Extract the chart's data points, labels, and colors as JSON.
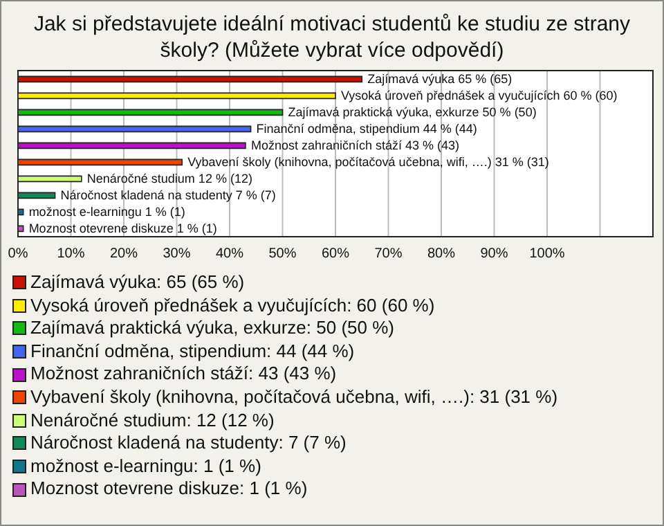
{
  "chart_data": {
    "type": "bar",
    "orientation": "horizontal",
    "title": "Jak si představujete ideální motivaci studentů ke studiu ze strany školy? (Můžete vybrat více odpovědí)",
    "categories": [
      null,
      null,
      null,
      null,
      null,
      null,
      null,
      null,
      null,
      null
    ],
    "values": [
      65,
      60,
      50,
      44,
      43,
      31,
      12,
      7,
      1,
      1
    ],
    "colors": [
      "#cc1100",
      "#ffee00",
      "#11bb11",
      "#4466ee",
      "#bb11cc",
      "#ee4400",
      "#ccff77",
      "#118855",
      "#117788",
      "#bb55bb"
    ],
    "value_labels": [
      "Zajímavá výuka 65 % (65)",
      "Vysoká úroveň přednášek a vyučujících 60 % (60)",
      "Zajímavá praktická výuka, exkurze 50 % (50)",
      "Finanční odměna, stipendium 44 % (44)",
      "Možnost zahraničních stáží 43 % (43)",
      "Vybavení školy (knihovna, počítačová učebna, wifi, ….) 31 % (31)",
      "Nenáročné studium 12 % (12)",
      "Náročnost kladená na studenty 7 % (7)",
      "možnost e-learningu 1 % (1)",
      "Moznost otevrene diskuze 1 % (1)"
    ],
    "annotations": [
      "Zajímavá výuka: 65 (65 %)",
      "Vysoká úroveň přednášek a vyučujících: 60 (60 %)",
      "Zajímavá praktická výuka, exkurze: 50 (50 %)",
      "Finanční odměna, stipendium: 44 (44 %)",
      "Možnost zahraničních stáží: 43 (43 %)",
      "Vybavení školy (knihovna, počítačová učebna, wifi, ….): 31 (31 %)",
      "Nenáročné studium: 12 (12 %)",
      "Náročnost kladená na studenty: 7 (7 %)",
      "možnost e-learningu: 1 (1 %)",
      "Moznost otevrene diskuze: 1 (1 %)"
    ],
    "xlim": [
      0,
      120
    ],
    "xticks": [
      {
        "value": 0,
        "label": "0%"
      },
      {
        "value": 10,
        "label": "10%"
      },
      {
        "value": 20,
        "label": "20%"
      },
      {
        "value": 30,
        "label": "30%"
      },
      {
        "value": 40,
        "label": "40%"
      },
      {
        "value": 50,
        "label": "50%"
      },
      {
        "value": 60,
        "label": "60%"
      },
      {
        "value": 70,
        "label": "70%"
      },
      {
        "value": 80,
        "label": "80%"
      },
      {
        "value": 90,
        "label": "90%"
      },
      {
        "value": 100,
        "label": "100%"
      },
      {
        "value": 110,
        "label": null
      },
      {
        "value": 120,
        "label": null
      }
    ],
    "grid": "x"
  }
}
